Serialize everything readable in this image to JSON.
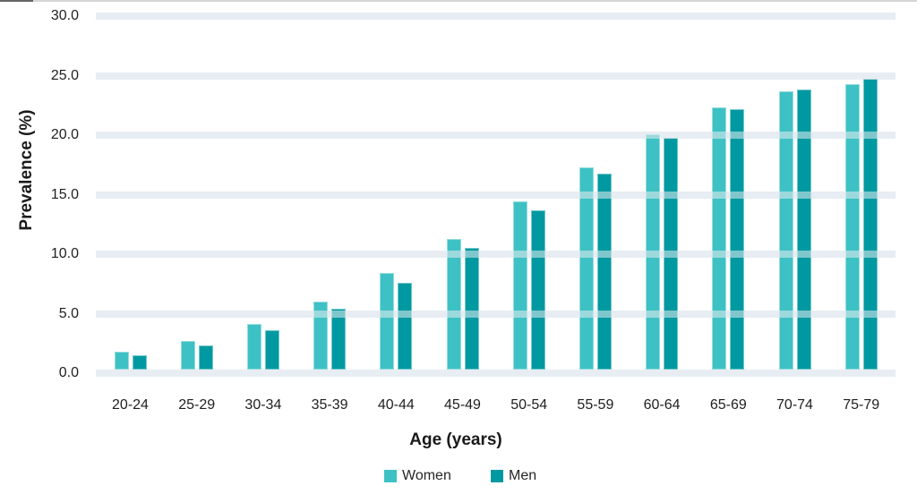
{
  "chart_data": {
    "type": "bar",
    "title": "",
    "categories": [
      "20-24",
      "25-29",
      "30-34",
      "35-39",
      "40-44",
      "45-49",
      "50-54",
      "55-59",
      "60-64",
      "65-69",
      "70-74",
      "75-79"
    ],
    "series": [
      {
        "name": "Women",
        "color": "#3EC1C4",
        "values": [
          1.8,
          2.7,
          4.1,
          6.0,
          8.4,
          11.3,
          14.4,
          17.3,
          20.1,
          22.3,
          23.7,
          24.3
        ]
      },
      {
        "name": "Men",
        "color": "#0099A1",
        "values": [
          1.5,
          2.3,
          3.6,
          5.4,
          7.6,
          10.5,
          13.7,
          16.8,
          19.8,
          22.2,
          23.8,
          24.7
        ]
      }
    ],
    "xlabel": "Age (years)",
    "ylabel": "Prevalence (%)",
    "ylim": [
      0,
      30
    ],
    "yticks": [
      "0.0",
      "5.0",
      "10.0",
      "15.0",
      "20.0",
      "25.0",
      "30.0"
    ],
    "ytick_step": 5,
    "grid": "horizontal",
    "gridline_color": "#E7EDF3",
    "legend_position": "bottom",
    "text_color": "#1F1F1F"
  },
  "decorations": {
    "top_rule_color": "#D6D6D6",
    "top_rule_accent_color": "#666666"
  }
}
